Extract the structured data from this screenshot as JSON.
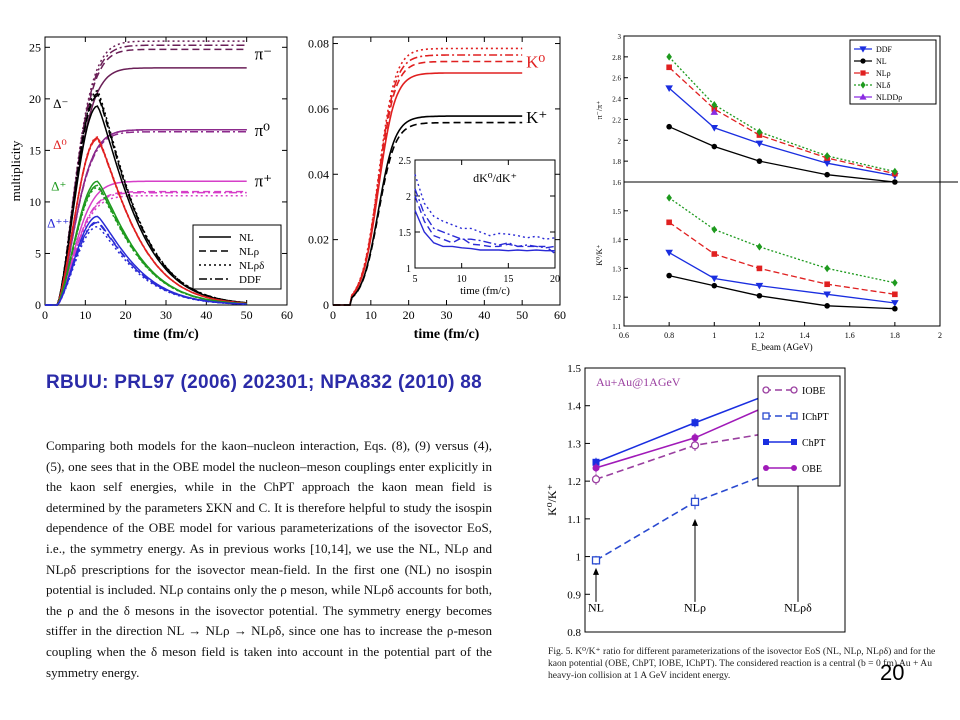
{
  "ref_title": "RBUU: PRL97 (2006) 202301; NPA832 (2010) 88",
  "excerpt": "Comparing both models for the kaon–nucleon interaction, Eqs. (8), (9) versus (4), (5), one sees that in the OBE model the nucleon–meson couplings enter explicitly in the kaon self energies, while in the ChPT approach the kaon mean field is determined by the parameters ΣKN and C. It is therefore helpful to study the isospin dependence of the OBE model for various parameterizations of the isovector EoS, i.e., the symmetry energy. As in previous works [10,14], we use the NL, NLρ and NLρδ prescriptions for the isovector mean-field. In the first one (NL) no isospin potential is included. NLρ contains only the ρ meson, while NLρδ accounts for both, the ρ and the δ mesons in the isovector potential. The symmetry energy becomes stiffer in the direction NL → NLρ → NLρδ, since one has to increase the ρ-meson coupling when the δ meson field is taken into account in the potential part of the symmetry energy.",
  "caption": "Fig. 5. K⁰/K⁺ ratio for different parameterizations of the isovector EoS (NL, NLρ, NLρδ) and for the kaon potential (OBE, ChPT, IOBE, IChPT). The considered reaction is a central (b = 0 fm) Au + Au heavy-ion collision at 1 A GeV incident energy.",
  "page_number": "20",
  "chart_data": [
    {
      "type": "line",
      "id": "pion-delta-multiplicity",
      "xlabel": "time (fm/c)",
      "ylabel": "multiplicity",
      "xlim": [
        0,
        60
      ],
      "ylim": [
        0,
        26
      ],
      "xticks": [
        "0",
        "10",
        "20",
        "30",
        "40",
        "50",
        "60"
      ],
      "yticks": [
        "0",
        "5",
        "10",
        "15",
        "20",
        "25"
      ],
      "legend": {
        "position": "lower-right",
        "entries": [
          "NL",
          "NLρ",
          "NLρδ",
          "DDF"
        ],
        "styles": [
          "solid",
          "dashed",
          "dotted",
          "dashdot"
        ]
      },
      "annotations": [
        "π⁻",
        "π⁰",
        "π⁺",
        "Δ⁻",
        "Δ⁰",
        "Δ⁺",
        "Δ⁺⁺"
      ],
      "groups": [
        {
          "label": "π⁻",
          "color": "#6a1f57",
          "kind": "rise",
          "tau": 6.0,
          "x0": 3,
          "series": [
            {
              "style": "NL",
              "final": 23.0
            },
            {
              "style": "NLρ",
              "final": 24.8
            },
            {
              "style": "NLρδ",
              "final": 25.6
            },
            {
              "style": "DDF",
              "final": 25.2
            }
          ]
        },
        {
          "label": "π⁰",
          "color": "#8c2a8c",
          "kind": "rise",
          "tau": 6.0,
          "x0": 3,
          "series": [
            {
              "style": "NL",
              "final": 17.0
            },
            {
              "style": "NLρ",
              "final": 17.0
            },
            {
              "style": "NLρδ",
              "final": 17.0
            },
            {
              "style": "DDF",
              "final": 16.8
            }
          ]
        },
        {
          "label": "π⁺",
          "color": "#d63fc8",
          "kind": "rise",
          "tau": 6.0,
          "x0": 3,
          "series": [
            {
              "style": "NL",
              "final": 12.0
            },
            {
              "style": "NLρ",
              "final": 11.0
            },
            {
              "style": "NLρδ",
              "final": 10.6
            },
            {
              "style": "DDF",
              "final": 10.9
            }
          ]
        },
        {
          "label": "Δ⁻",
          "color": "#000000",
          "kind": "peak",
          "peak_x": 13,
          "series": [
            {
              "style": "NL",
              "peak": 19.3
            },
            {
              "style": "NLρ",
              "peak": 20.3
            },
            {
              "style": "NLρδ",
              "peak": 20.8
            },
            {
              "style": "DDF",
              "peak": 20.5
            }
          ]
        },
        {
          "label": "Δ⁰",
          "color": "#e02020",
          "kind": "peak",
          "peak_x": 13,
          "series": [
            {
              "style": "NL",
              "peak": 16.2
            },
            {
              "style": "NLρ",
              "peak": 16.2
            },
            {
              "style": "NLρδ",
              "peak": 16.3
            },
            {
              "style": "DDF",
              "peak": 16.1
            }
          ]
        },
        {
          "label": "Δ⁺",
          "color": "#1e9a1e",
          "kind": "peak",
          "peak_x": 13,
          "series": [
            {
              "style": "NL",
              "peak": 12.0
            },
            {
              "style": "NLρ",
              "peak": 11.6
            },
            {
              "style": "NLρδ",
              "peak": 11.4
            },
            {
              "style": "DDF",
              "peak": 11.6
            }
          ]
        },
        {
          "label": "Δ⁺⁺",
          "color": "#2a2ad6",
          "kind": "peak",
          "peak_x": 13,
          "series": [
            {
              "style": "NL",
              "peak": 8.6
            },
            {
              "style": "NLρ",
              "peak": 8.0
            },
            {
              "style": "NLρδ",
              "peak": 7.6
            },
            {
              "style": "DDF",
              "peak": 8.1
            }
          ]
        }
      ]
    },
    {
      "type": "line",
      "id": "kaon-multiplicity",
      "xlabel": "time (fm/c)",
      "xlim": [
        0,
        60
      ],
      "ylim": [
        0,
        0.082
      ],
      "xticks": [
        "0",
        "10",
        "20",
        "30",
        "40",
        "50",
        "60"
      ],
      "yticks": [
        "0",
        "0.02",
        "0.04",
        "0.06",
        "0.08"
      ],
      "annotations": [
        "K⁰",
        "K⁺"
      ],
      "groups": [
        {
          "label": "K⁰",
          "color": "#e02020",
          "series": [
            {
              "style": "NL",
              "final": 0.071
            },
            {
              "style": "NLρ",
              "final": 0.0745
            },
            {
              "style": "NLρδ",
              "final": 0.0785
            },
            {
              "style": "DDF",
              "final": 0.0765
            }
          ]
        },
        {
          "label": "K⁺",
          "color": "#000000",
          "series": [
            {
              "style": "NL",
              "final": 0.0578
            },
            {
              "style": "NLρ",
              "final": 0.0558
            }
          ]
        }
      ],
      "inset": {
        "title": "dK⁰/dK⁺",
        "xlabel": "time (fm/c)",
        "xlim": [
          5,
          20
        ],
        "ylim": [
          1,
          2.5
        ],
        "xticks": [
          "5",
          "10",
          "15",
          "20"
        ],
        "yticks": [
          "1",
          "1.5",
          "2",
          "2.5"
        ],
        "color": "#2a2ad6",
        "series": [
          {
            "style": "NL",
            "x": [
              5,
              6,
              7,
              8,
              9,
              10,
              11,
              12,
              13,
              14,
              15,
              16,
              17,
              18,
              19,
              20
            ],
            "y": [
              1.8,
              1.5,
              1.35,
              1.3,
              1.3,
              1.28,
              1.27,
              1.25,
              1.25,
              1.25,
              1.24,
              1.25,
              1.24,
              1.25,
              1.24,
              1.24
            ]
          },
          {
            "style": "NLρ",
            "x": [
              5,
              6,
              7,
              8,
              9,
              10,
              11,
              12,
              13,
              14,
              15,
              16,
              17,
              18,
              19,
              20
            ],
            "y": [
              2.0,
              1.65,
              1.45,
              1.4,
              1.35,
              1.42,
              1.33,
              1.32,
              1.3,
              1.3,
              1.33,
              1.3,
              1.3,
              1.3,
              1.3,
              1.2
            ]
          },
          {
            "style": "NLρδ",
            "x": [
              5,
              6,
              7,
              8,
              9,
              10,
              11,
              12,
              13,
              14,
              15,
              16,
              17,
              18,
              19,
              20
            ],
            "y": [
              2.3,
              1.9,
              1.72,
              1.65,
              1.6,
              1.55,
              1.55,
              1.5,
              1.45,
              1.48,
              1.47,
              1.45,
              1.42,
              1.44,
              1.4,
              1.42
            ]
          },
          {
            "style": "DDF",
            "x": [
              5,
              6,
              7,
              8,
              9,
              10,
              11,
              12,
              13,
              14,
              15,
              16,
              17,
              18,
              19,
              20
            ],
            "y": [
              2.1,
              1.75,
              1.55,
              1.5,
              1.45,
              1.4,
              1.4,
              1.38,
              1.35,
              1.32,
              1.35,
              1.3,
              1.32,
              1.3,
              1.28,
              1.3
            ]
          }
        ]
      }
    },
    {
      "type": "line",
      "id": "pion-kaon-ratios-vs-beam-energy",
      "xlabel": "E_beam (AGeV)",
      "xlim": [
        0.6,
        2.0
      ],
      "xticks": [
        "0.6",
        "0.8",
        "1",
        "1.2",
        "1.4",
        "1.6",
        "1.8",
        "2"
      ],
      "legend": {
        "position": "top-right",
        "entries": [
          "DDF",
          "NL",
          "NLρ",
          "NLδ",
          "NLDDρ"
        ]
      },
      "top_panel": {
        "ylabel": "π⁻/π⁺",
        "ylim": [
          1.6,
          3.0
        ],
        "yticks": [
          "1.6",
          "1.8",
          "2",
          "2.2",
          "2.4",
          "2.6",
          "2.8",
          "3"
        ],
        "series": [
          {
            "name": "DDF",
            "color": "#1a2ee0",
            "marker": "triangle-down",
            "x": [
              0.8,
              1.0,
              1.2,
              1.5,
              1.8
            ],
            "y": [
              2.5,
              2.12,
              1.97,
              1.78,
              1.66
            ]
          },
          {
            "name": "NL",
            "color": "#000000",
            "marker": "circle",
            "x": [
              0.8,
              1.0,
              1.2,
              1.5,
              1.8
            ],
            "y": [
              2.13,
              1.94,
              1.8,
              1.67,
              1.6
            ]
          },
          {
            "name": "NLρ",
            "color": "#e02020",
            "marker": "square",
            "x": [
              0.8,
              1.0,
              1.2,
              1.5,
              1.8
            ],
            "y": [
              2.7,
              2.3,
              2.05,
              1.83,
              1.68
            ]
          },
          {
            "name": "NLδ",
            "color": "#1e9a1e",
            "marker": "diamond",
            "x": [
              0.8,
              1.0,
              1.2,
              1.5,
              1.8
            ],
            "y": [
              2.8,
              2.34,
              2.08,
              1.85,
              1.7
            ]
          },
          {
            "name": "NLDDρ",
            "color": "#8a2be2",
            "marker": "triangle-up",
            "x": [
              1.0
            ],
            "y": [
              2.27
            ]
          }
        ]
      },
      "bottom_panel": {
        "ylabel": "K⁰/K⁺",
        "ylim": [
          1.1,
          1.6
        ],
        "yticks": [
          "1.1",
          "1.2",
          "1.3",
          "1.4",
          "1.5"
        ],
        "series": [
          {
            "name": "DDF",
            "color": "#1a2ee0",
            "marker": "triangle-down",
            "x": [
              0.8,
              1.0,
              1.2,
              1.5,
              1.8
            ],
            "y": [
              1.355,
              1.265,
              1.24,
              1.21,
              1.18
            ]
          },
          {
            "name": "NL",
            "color": "#000000",
            "marker": "circle",
            "x": [
              0.8,
              1.0,
              1.2,
              1.5,
              1.8
            ],
            "y": [
              1.275,
              1.24,
              1.205,
              1.17,
              1.16
            ]
          },
          {
            "name": "NLρ",
            "color": "#e02020",
            "marker": "square",
            "x": [
              0.8,
              1.0,
              1.2,
              1.5,
              1.8
            ],
            "y": [
              1.46,
              1.35,
              1.3,
              1.245,
              1.21
            ]
          },
          {
            "name": "NLδ",
            "color": "#1e9a1e",
            "marker": "diamond",
            "x": [
              0.8,
              1.0,
              1.2,
              1.5,
              1.8
            ],
            "y": [
              1.545,
              1.435,
              1.375,
              1.3,
              1.25
            ]
          }
        ]
      }
    },
    {
      "type": "line",
      "id": "k0-kplus-ratio-au-au-1agev",
      "title": "Au+Au@1AGeV",
      "ylabel": "K⁰/K⁺",
      "ylim": [
        0.8,
        1.5
      ],
      "yticks": [
        "0.8",
        "0.9",
        "1",
        "1.1",
        "1.2",
        "1.3",
        "1.4",
        "1.5"
      ],
      "categories": [
        "NL",
        "NLρ",
        "NLρδ"
      ],
      "legend": {
        "position": "top-right",
        "entries": [
          "IOBE",
          "IChPT",
          "ChPT",
          "OBE"
        ]
      },
      "series": [
        {
          "name": "IOBE",
          "color": "#9a3fa0",
          "style": "dashed",
          "marker": "open-circle",
          "values": [
            1.205,
            1.295,
            1.34
          ],
          "errors": [
            0.015,
            0.015,
            0.02
          ]
        },
        {
          "name": "IChPT",
          "color": "#2a4ad0",
          "style": "dashed",
          "marker": "open-square",
          "values": [
            0.99,
            1.145,
            1.25
          ],
          "errors": [
            0.012,
            0.02,
            0.02
          ]
        },
        {
          "name": "ChPT",
          "color": "#1a2ee0",
          "style": "solid",
          "marker": "filled-square",
          "values": [
            1.25,
            1.355,
            1.46
          ],
          "errors": [
            0.012,
            0.012,
            0.015
          ]
        },
        {
          "name": "OBE",
          "color": "#a01ab8",
          "style": "solid",
          "marker": "filled-circle",
          "values": [
            1.235,
            1.315,
            1.435
          ],
          "errors": [
            0.012,
            0.012,
            0.015
          ]
        }
      ]
    }
  ]
}
